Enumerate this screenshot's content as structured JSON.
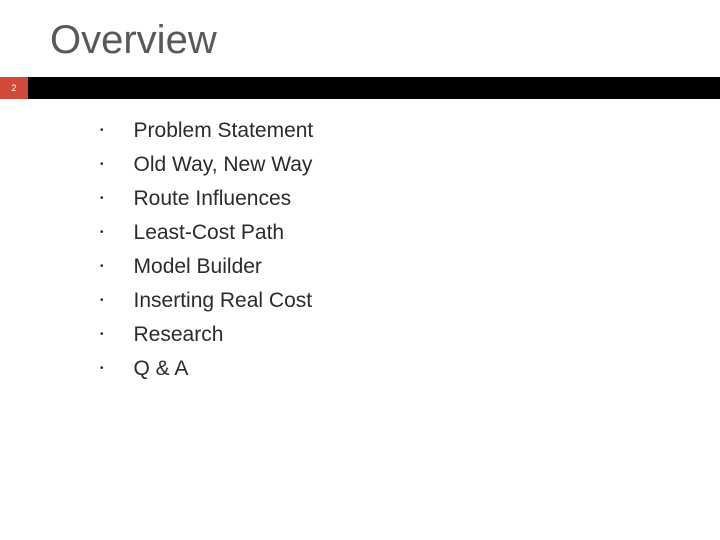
{
  "slide": {
    "title": "Overview",
    "page_number": "2",
    "title_color": "#595959",
    "title_fontsize": 40,
    "accent_color": "#d04a3a",
    "bar_color": "#000000",
    "background_color": "#ffffff",
    "text_color": "#2b2b2b",
    "bullet_fontsize": 21
  },
  "bullets": {
    "items": [
      "Problem Statement",
      "Old Way, New Way",
      "Route Influences",
      "Least-Cost Path",
      "Model Builder",
      "Inserting Real Cost",
      "Research",
      "Q & A"
    ]
  }
}
